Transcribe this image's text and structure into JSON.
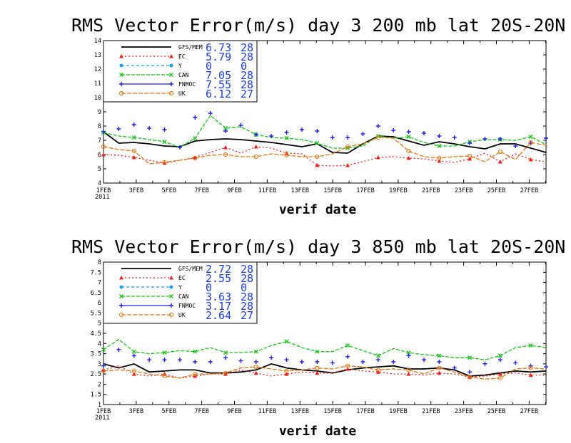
{
  "chart_data": [
    {
      "type": "line",
      "title": "RMS Vector Error(m/s) day 3  200 mb   lat 20S-20N",
      "xlabel": "verif date",
      "ylabel": "",
      "x_ticks": [
        "1FEB",
        "3FEB",
        "5FEB",
        "7FEB",
        "9FEB",
        "11FEB",
        "13FEB",
        "15FEB",
        "17FEB",
        "19FEB",
        "21FEB",
        "23FEB",
        "25FEB",
        "27FEB"
      ],
      "x_year": "2011",
      "ylim": [
        4,
        14
      ],
      "yticks": [
        4,
        5,
        6,
        7,
        8,
        9,
        10,
        11,
        12,
        13,
        14
      ],
      "legend_position": "top-left",
      "series": [
        {
          "name": "GFS/MEM",
          "mean": "6.73",
          "count": "28",
          "color": "#000000",
          "values": [
            7.6,
            6.8,
            6.85,
            6.75,
            6.6,
            6.55,
            6.95,
            7.05,
            7.1,
            7.05,
            6.95,
            6.85,
            6.7,
            6.55,
            6.75,
            6.15,
            6.1,
            6.75,
            7.3,
            7.25,
            6.95,
            6.65,
            6.9,
            6.75,
            6.55,
            6.4,
            6.75,
            6.75,
            6.45,
            6.15
          ]
        },
        {
          "name": "EC",
          "mean": "5.79",
          "count": "28",
          "color": "#e8201e",
          "values": [
            6.0,
            5.95,
            5.8,
            5.6,
            5.4,
            5.6,
            5.8,
            6.15,
            6.5,
            6.1,
            6.55,
            6.45,
            6.1,
            6.05,
            5.25,
            5.2,
            5.25,
            5.5,
            5.8,
            5.85,
            5.75,
            5.7,
            5.55,
            5.45,
            5.7,
            6.1,
            5.5,
            6.05,
            5.65,
            5.5
          ]
        },
        {
          "name": "Y",
          "mean": "0",
          "count": "0",
          "color": "#1e9fe8",
          "values": []
        },
        {
          "name": "CAN",
          "mean": "7.05",
          "count": "28",
          "color": "#18c418",
          "values": [
            7.55,
            7.3,
            7.2,
            7.05,
            6.9,
            6.5,
            7.15,
            8.75,
            7.85,
            7.95,
            7.4,
            7.2,
            7.15,
            7.05,
            6.8,
            6.45,
            6.45,
            6.6,
            7.3,
            7.15,
            7.25,
            6.85,
            6.6,
            6.6,
            6.9,
            7.05,
            7.05,
            7.0,
            7.25,
            6.7
          ]
        },
        {
          "name": "FNMOC",
          "mean": "7.55",
          "count": "28",
          "color": "#1e1ee8",
          "values": [
            7.6,
            7.8,
            8.1,
            7.85,
            7.75,
            6.5,
            8.6,
            8.9,
            7.65,
            8.05,
            7.4,
            7.3,
            7.55,
            7.75,
            7.65,
            7.2,
            7.2,
            7.45,
            8.0,
            7.7,
            7.6,
            7.5,
            7.3,
            7.2,
            6.8,
            7.1,
            7.1,
            6.6,
            6.8,
            7.15
          ]
        },
        {
          "name": "UK",
          "mean": "6.12",
          "count": "27",
          "color": "#e07818",
          "values": [
            6.55,
            6.35,
            6.25,
            5.35,
            5.45,
            5.6,
            5.75,
            5.95,
            6.0,
            5.85,
            5.85,
            6.05,
            5.95,
            5.85,
            5.85,
            6.05,
            6.55,
            6.75,
            7.2,
            7.15,
            6.25,
            5.85,
            5.75,
            5.85,
            5.9,
            5.5,
            6.2,
            5.65,
            6.85,
            6.65
          ]
        }
      ]
    },
    {
      "type": "line",
      "title": "RMS Vector Error(m/s) day 3  850 mb   lat 20S-20N",
      "xlabel": "verif date",
      "ylabel": "",
      "x_ticks": [
        "1FEB",
        "3FEB",
        "5FEB",
        "7FEB",
        "9FEB",
        "11FEB",
        "13FEB",
        "15FEB",
        "17FEB",
        "19FEB",
        "21FEB",
        "23FEB",
        "25FEB",
        "27FEB"
      ],
      "x_year": "2011",
      "ylim": [
        1,
        8
      ],
      "yticks": [
        1,
        1.5,
        2,
        2.5,
        3,
        3.5,
        4,
        4.5,
        5,
        5.5,
        6,
        6.5,
        7,
        7.5,
        8
      ],
      "legend_position": "top-left",
      "series": [
        {
          "name": "GFS/MEM",
          "mean": "2.72",
          "count": "28",
          "color": "#000000",
          "values": [
            3.0,
            2.8,
            3.0,
            2.6,
            2.65,
            2.7,
            2.7,
            2.55,
            2.55,
            2.6,
            2.7,
            3.0,
            2.8,
            2.7,
            2.65,
            2.55,
            2.7,
            2.8,
            2.85,
            2.9,
            2.75,
            2.75,
            2.8,
            2.7,
            2.4,
            2.45,
            2.55,
            2.65,
            2.6,
            2.65
          ]
        },
        {
          "name": "EC",
          "mean": "2.55",
          "count": "28",
          "color": "#e8201e",
          "values": [
            2.7,
            2.9,
            2.5,
            2.4,
            2.5,
            2.3,
            2.4,
            2.5,
            2.5,
            2.7,
            2.55,
            2.4,
            2.5,
            2.6,
            2.55,
            2.55,
            2.75,
            2.65,
            2.6,
            2.5,
            2.5,
            2.45,
            2.55,
            2.5,
            2.35,
            2.4,
            2.5,
            2.55,
            2.45,
            2.45
          ]
        },
        {
          "name": "Y",
          "mean": "0",
          "count": "0",
          "color": "#1e9fe8",
          "values": []
        },
        {
          "name": "CAN",
          "mean": "3.63",
          "count": "28",
          "color": "#18c418",
          "values": [
            3.7,
            4.2,
            3.6,
            3.5,
            3.55,
            3.65,
            3.6,
            3.8,
            3.55,
            3.55,
            3.6,
            3.9,
            4.1,
            3.8,
            3.6,
            3.6,
            3.9,
            3.65,
            3.4,
            3.75,
            3.55,
            3.45,
            3.4,
            3.3,
            3.3,
            3.2,
            3.4,
            3.8,
            3.9,
            3.8
          ]
        },
        {
          "name": "FNMOC",
          "mean": "3.17",
          "count": "28",
          "color": "#1e1ee8",
          "values": [
            2.9,
            3.7,
            3.4,
            3.2,
            3.2,
            3.2,
            3.1,
            3.1,
            3.3,
            3.15,
            3.1,
            3.3,
            3.2,
            3.1,
            3.1,
            3.05,
            3.35,
            3.1,
            3.2,
            3.1,
            3.4,
            3.2,
            3.1,
            2.8,
            2.6,
            3.0,
            3.2,
            3.05,
            2.9,
            2.85
          ]
        },
        {
          "name": "UK",
          "mean": "2.64",
          "count": "27",
          "color": "#e07818",
          "values": [
            2.65,
            2.7,
            2.65,
            2.5,
            2.4,
            2.3,
            2.5,
            2.5,
            2.55,
            2.8,
            2.85,
            2.75,
            2.65,
            2.7,
            2.8,
            2.75,
            2.9,
            2.85,
            2.7,
            2.75,
            2.7,
            2.5,
            2.8,
            2.6,
            2.35,
            2.25,
            2.3,
            2.75,
            2.8,
            2.75
          ]
        }
      ]
    }
  ]
}
